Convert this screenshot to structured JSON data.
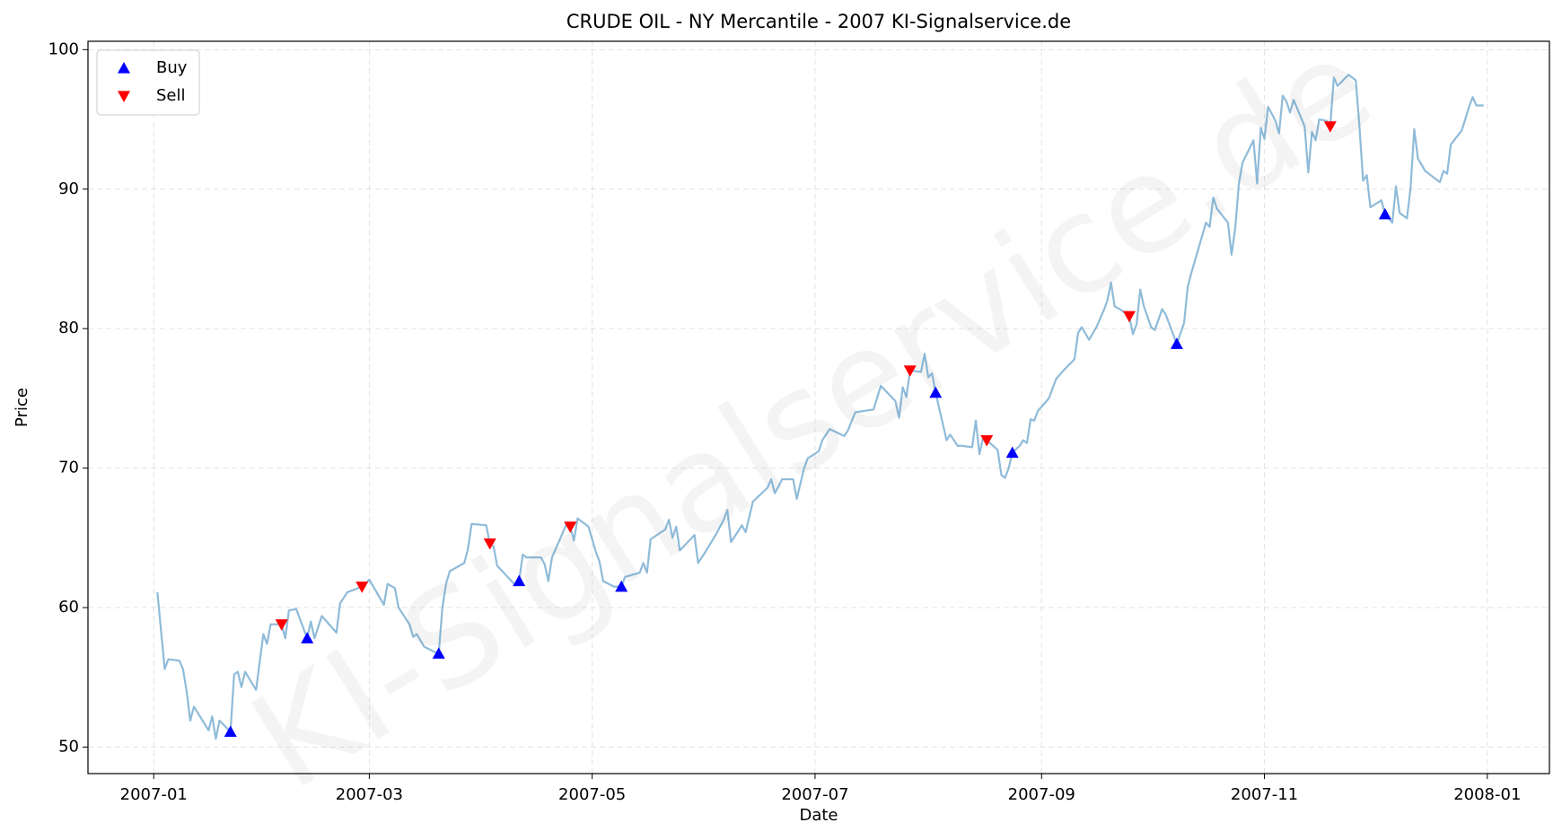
{
  "chart_data": {
    "type": "line",
    "title": "CRUDE OIL - NY Mercantile - 2007 KI-Signalservice.de",
    "watermark": "KI-Signalservice.de",
    "xlabel": "Date",
    "ylabel": "Price",
    "xlim": [
      "2006-12-14",
      "2008-01-18"
    ],
    "xticks": [
      "2007-01",
      "2007-03",
      "2007-05",
      "2007-07",
      "2007-09",
      "2007-11",
      "2008-01"
    ],
    "ylim": [
      48.1,
      100.6
    ],
    "yticks": [
      50,
      60,
      70,
      80,
      90,
      100
    ],
    "grid": true,
    "legend": "upper left",
    "series": [
      {
        "color": "#1f77b4",
        "alpha": 0.5,
        "x": [
          "2007-01-02",
          "2007-01-04",
          "2007-01-05",
          "2007-01-08",
          "2007-01-09",
          "2007-01-10",
          "2007-01-11",
          "2007-01-12",
          "2007-01-16",
          "2007-01-17",
          "2007-01-18",
          "2007-01-19",
          "2007-01-22",
          "2007-01-23",
          "2007-01-24",
          "2007-01-25",
          "2007-01-26",
          "2007-01-29",
          "2007-01-31",
          "2007-02-01",
          "2007-02-02",
          "2007-02-05",
          "2007-02-06",
          "2007-02-07",
          "2007-02-09",
          "2007-02-12",
          "2007-02-13",
          "2007-02-14",
          "2007-02-16",
          "2007-02-20",
          "2007-02-21",
          "2007-02-23",
          "2007-02-26",
          "2007-02-27",
          "2007-03-01",
          "2007-03-05",
          "2007-03-06",
          "2007-03-08",
          "2007-03-09",
          "2007-03-12",
          "2007-03-13",
          "2007-03-14",
          "2007-03-16",
          "2007-03-19",
          "2007-03-20",
          "2007-03-21",
          "2007-03-22",
          "2007-03-23",
          "2007-03-27",
          "2007-03-28",
          "2007-03-29",
          "2007-04-02",
          "2007-04-03",
          "2007-04-04",
          "2007-04-05",
          "2007-04-10",
          "2007-04-11",
          "2007-04-12",
          "2007-04-13",
          "2007-04-17",
          "2007-04-18",
          "2007-04-19",
          "2007-04-20",
          "2007-04-24",
          "2007-04-25",
          "2007-04-26",
          "2007-04-27",
          "2007-04-30",
          "2007-05-02",
          "2007-05-03",
          "2007-05-04",
          "2007-05-07",
          "2007-05-09",
          "2007-05-10",
          "2007-05-14",
          "2007-05-15",
          "2007-05-16",
          "2007-05-17",
          "2007-05-21",
          "2007-05-22",
          "2007-05-23",
          "2007-05-24",
          "2007-05-25",
          "2007-05-29",
          "2007-05-30",
          "2007-06-01",
          "2007-06-04",
          "2007-06-06",
          "2007-06-07",
          "2007-06-08",
          "2007-06-11",
          "2007-06-12",
          "2007-06-14",
          "2007-06-18",
          "2007-06-19",
          "2007-06-20",
          "2007-06-22",
          "2007-06-25",
          "2007-06-26",
          "2007-06-28",
          "2007-06-29",
          "2007-07-02",
          "2007-07-03",
          "2007-07-05",
          "2007-07-09",
          "2007-07-10",
          "2007-07-12",
          "2007-07-17",
          "2007-07-19",
          "2007-07-23",
          "2007-07-24",
          "2007-07-25",
          "2007-07-26",
          "2007-07-27",
          "2007-07-30",
          "2007-07-31",
          "2007-08-01",
          "2007-08-02",
          "2007-08-03",
          "2007-08-06",
          "2007-08-07",
          "2007-08-09",
          "2007-08-10",
          "2007-08-13",
          "2007-08-14",
          "2007-08-15",
          "2007-08-16",
          "2007-08-17",
          "2007-08-20",
          "2007-08-21",
          "2007-08-22",
          "2007-08-23",
          "2007-08-24",
          "2007-08-26",
          "2007-08-27",
          "2007-08-28",
          "2007-08-29",
          "2007-08-30",
          "2007-08-31",
          "2007-09-03",
          "2007-09-05",
          "2007-09-07",
          "2007-09-10",
          "2007-09-11",
          "2007-09-12",
          "2007-09-14",
          "2007-09-16",
          "2007-09-18",
          "2007-09-19",
          "2007-09-20",
          "2007-09-21",
          "2007-09-23",
          "2007-09-24",
          "2007-09-25",
          "2007-09-26",
          "2007-09-27",
          "2007-09-28",
          "2007-09-29",
          "2007-10-01",
          "2007-10-02",
          "2007-10-04",
          "2007-10-05",
          "2007-10-07",
          "2007-10-08",
          "2007-10-10",
          "2007-10-11",
          "2007-10-12",
          "2007-10-16",
          "2007-10-17",
          "2007-10-18",
          "2007-10-19",
          "2007-10-22",
          "2007-10-23",
          "2007-10-24",
          "2007-10-25",
          "2007-10-26",
          "2007-10-29",
          "2007-10-30",
          "2007-10-31",
          "2007-11-01",
          "2007-11-02",
          "2007-11-04",
          "2007-11-05",
          "2007-11-06",
          "2007-11-07",
          "2007-11-08",
          "2007-11-09",
          "2007-11-12",
          "2007-11-13",
          "2007-11-14",
          "2007-11-15",
          "2007-11-16",
          "2007-11-18",
          "2007-11-19",
          "2007-11-20",
          "2007-11-21",
          "2007-11-24",
          "2007-11-26",
          "2007-11-27",
          "2007-11-28",
          "2007-11-29",
          "2007-11-30",
          "2007-12-03",
          "2007-12-04",
          "2007-12-06",
          "2007-12-07",
          "2007-12-08",
          "2007-12-10",
          "2007-12-11",
          "2007-12-12",
          "2007-12-13",
          "2007-12-15",
          "2007-12-18",
          "2007-12-19",
          "2007-12-20",
          "2007-12-21",
          "2007-12-22",
          "2007-12-25",
          "2007-12-27",
          "2007-12-28",
          "2007-12-29",
          "2007-12-31"
        ],
        "values": [
          61.1,
          55.6,
          56.3,
          56.2,
          55.6,
          54.0,
          51.9,
          52.9,
          51.2,
          52.2,
          50.6,
          51.9,
          51.1,
          55.2,
          55.4,
          54.3,
          55.4,
          54.1,
          58.1,
          57.4,
          58.8,
          58.8,
          57.8,
          59.8,
          59.9,
          57.8,
          59.0,
          57.8,
          59.4,
          58.2,
          60.3,
          61.1,
          61.4,
          61.5,
          62.0,
          60.2,
          61.7,
          61.4,
          60.0,
          58.8,
          57.9,
          58.1,
          57.2,
          56.8,
          56.7,
          60.0,
          61.7,
          62.6,
          63.2,
          64.2,
          66.0,
          65.9,
          64.6,
          64.4,
          63.0,
          61.6,
          61.9,
          63.8,
          63.6,
          63.6,
          63.1,
          61.9,
          63.6,
          66.0,
          65.8,
          64.8,
          66.4,
          65.8,
          64.0,
          63.3,
          61.9,
          61.5,
          61.5,
          62.2,
          62.5,
          63.2,
          62.5,
          64.9,
          65.6,
          66.3,
          65.0,
          65.8,
          64.1,
          65.2,
          63.2,
          64.0,
          65.3,
          66.3,
          67.0,
          64.7,
          65.9,
          65.4,
          67.6,
          68.6,
          69.2,
          68.2,
          69.2,
          69.2,
          67.8,
          70.0,
          70.7,
          71.2,
          72.0,
          72.8,
          72.3,
          72.7,
          74.0,
          74.2,
          75.9,
          74.8,
          73.6,
          75.8,
          75.1,
          77.0,
          76.9,
          78.2,
          76.5,
          76.8,
          75.4,
          72.0,
          72.4,
          71.6,
          71.6,
          71.5,
          73.4,
          71.0,
          72.2,
          72.0,
          71.3,
          69.5,
          69.3,
          70.0,
          71.1,
          71.6,
          72.0,
          71.8,
          73.5,
          73.4,
          74.1,
          75.0,
          76.4,
          77.0,
          77.8,
          79.7,
          80.1,
          79.2,
          80.1,
          81.3,
          82.0,
          83.3,
          81.6,
          81.3,
          81.1,
          80.9,
          79.6,
          80.3,
          82.8,
          81.6,
          80.1,
          79.9,
          81.4,
          81.0,
          79.6,
          78.9,
          80.4,
          83.0,
          84.0,
          87.6,
          87.3,
          89.4,
          88.6,
          87.6,
          85.3,
          87.2,
          90.4,
          91.9,
          93.5,
          90.4,
          94.4,
          93.6,
          95.9,
          94.9,
          94.0,
          96.7,
          96.3,
          95.5,
          96.4,
          94.5,
          91.2,
          94.1,
          93.5,
          95.0,
          94.9,
          94.5,
          98.0,
          97.4,
          98.2,
          97.8,
          94.5,
          90.6,
          91.0,
          88.7,
          89.2,
          88.2,
          87.6,
          90.2,
          88.3,
          87.9,
          90.1,
          94.3,
          92.2,
          91.3,
          90.7,
          90.5,
          91.3,
          91.1,
          93.2,
          94.2,
          95.9,
          96.6,
          96.0,
          96.0
        ]
      },
      {
        "name": "Buy",
        "color": "#0000ff",
        "marker": "up",
        "x": [
          "2007-01-22",
          "2007-02-12",
          "2007-03-20",
          "2007-04-11",
          "2007-05-09",
          "2007-08-03",
          "2007-08-24",
          "2007-10-08",
          "2007-12-04"
        ],
        "values": [
          51.1,
          57.8,
          56.7,
          61.9,
          61.5,
          75.4,
          71.1,
          78.9,
          88.2
        ]
      },
      {
        "name": "Sell",
        "color": "#ff0000",
        "marker": "down",
        "x": [
          "2007-02-05",
          "2007-02-27",
          "2007-04-03",
          "2007-04-25",
          "2007-07-27",
          "2007-08-17",
          "2007-09-25",
          "2007-11-19"
        ],
        "values": [
          58.8,
          61.5,
          64.6,
          65.8,
          77.0,
          72.0,
          80.9,
          94.5
        ]
      }
    ]
  }
}
